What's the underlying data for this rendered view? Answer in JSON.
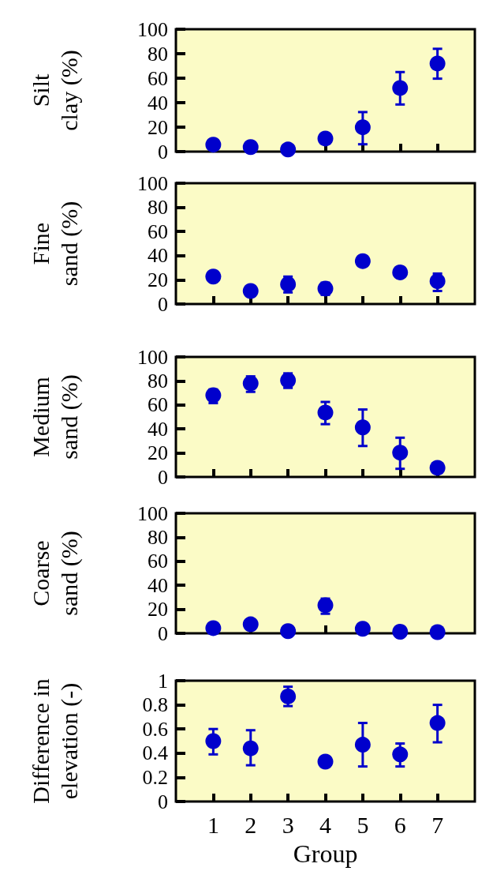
{
  "chart_data": [
    {
      "type": "scatter",
      "ylabel": "Silt clay (%)",
      "x": [
        1,
        2,
        3,
        4,
        5,
        6,
        7
      ],
      "xlim": [
        0,
        8
      ],
      "xticks": [
        1,
        2,
        3,
        4,
        5,
        6,
        7
      ],
      "ylim": [
        0,
        100
      ],
      "yticks": [
        0,
        20,
        40,
        60,
        80,
        100
      ],
      "tick_labels": "y",
      "grid": false,
      "marker": "circle",
      "series": [
        {
          "color": "#0000cc",
          "values": [
            5.7,
            3.7,
            1.7,
            10.7,
            19.9,
            52,
            72
          ],
          "errors": [
            null,
            null,
            null,
            null,
            [
              6,
              32.3
            ],
            [
              38.5,
              65
            ],
            [
              59.6,
              84
            ]
          ]
        }
      ]
    },
    {
      "type": "scatter",
      "ylabel": "Fine sand (%)",
      "x": [
        1,
        2,
        3,
        4,
        5,
        6,
        7
      ],
      "xlim": [
        0,
        8
      ],
      "xticks": [
        1,
        2,
        3,
        4,
        5,
        6,
        7
      ],
      "ylim": [
        0,
        100
      ],
      "yticks": [
        0,
        20,
        40,
        60,
        80,
        100
      ],
      "tick_labels": "y",
      "grid": false,
      "marker": "circle",
      "series": [
        {
          "color": "#0000cc",
          "values": [
            22.7,
            10.8,
            16.4,
            12.8,
            35.5,
            26.2,
            18.9
          ],
          "errors": [
            null,
            null,
            [
              9.6,
              22.7
            ],
            [
              7.6,
              17.6
            ],
            null,
            null,
            [
              10.8,
              25.2
            ]
          ]
        }
      ]
    },
    {
      "type": "scatter",
      "ylabel": "Medium sand (%)",
      "x": [
        1,
        2,
        3,
        4,
        5,
        6,
        7
      ],
      "xlim": [
        0,
        8
      ],
      "xticks": [
        1,
        2,
        3,
        4,
        5,
        6,
        7
      ],
      "ylim": [
        0,
        100
      ],
      "yticks": [
        0,
        20,
        40,
        60,
        80,
        100
      ],
      "tick_labels": "y",
      "grid": false,
      "marker": "circle",
      "series": [
        {
          "color": "#0000cc",
          "values": [
            68.1,
            78,
            80.5,
            53.7,
            41.3,
            20.3,
            7.6
          ],
          "errors": [
            [
              61.5,
              72.9
            ],
            [
              70.9,
              83.8
            ],
            [
              74.2,
              86.3
            ],
            [
              44,
              62.5
            ],
            [
              25.8,
              56.2
            ],
            [
              6.8,
              32.7
            ],
            null
          ]
        }
      ]
    },
    {
      "type": "scatter",
      "ylabel": "Coarse sand (%)",
      "x": [
        1,
        2,
        3,
        4,
        5,
        6,
        7
      ],
      "xlim": [
        0,
        8
      ],
      "xticks": [
        1,
        2,
        3,
        4,
        5,
        6,
        7
      ],
      "ylim": [
        0,
        100
      ],
      "yticks": [
        0,
        20,
        40,
        60,
        80,
        100
      ],
      "tick_labels": "y",
      "grid": false,
      "marker": "circle",
      "series": [
        {
          "color": "#0000cc",
          "values": [
            4.3,
            7.5,
            1.8,
            23.4,
            3.8,
            1.3,
            1.0
          ],
          "errors": [
            null,
            null,
            null,
            [
              16.3,
              28.9
            ],
            null,
            null,
            null
          ]
        }
      ]
    },
    {
      "type": "scatter",
      "xlabel": "Group",
      "ylabel": "Difference in elevation (-)",
      "x": [
        1,
        2,
        3,
        4,
        5,
        6,
        7
      ],
      "xlim": [
        0,
        8
      ],
      "xticks": [
        1,
        2,
        3,
        4,
        5,
        6,
        7
      ],
      "ylim": [
        0,
        1
      ],
      "yticks": [
        0,
        0.2,
        0.4,
        0.6,
        0.8,
        1
      ],
      "grid": false,
      "marker": "circle",
      "series": [
        {
          "color": "#0000cc",
          "values": [
            0.5,
            0.44,
            0.87,
            0.33,
            0.47,
            0.39,
            0.65
          ],
          "errors": [
            [
              0.39,
              0.6
            ],
            [
              0.3,
              0.59
            ],
            [
              0.79,
              0.95
            ],
            null,
            [
              0.29,
              0.65
            ],
            [
              0.29,
              0.48
            ],
            [
              0.49,
              0.8
            ]
          ]
        }
      ]
    }
  ]
}
